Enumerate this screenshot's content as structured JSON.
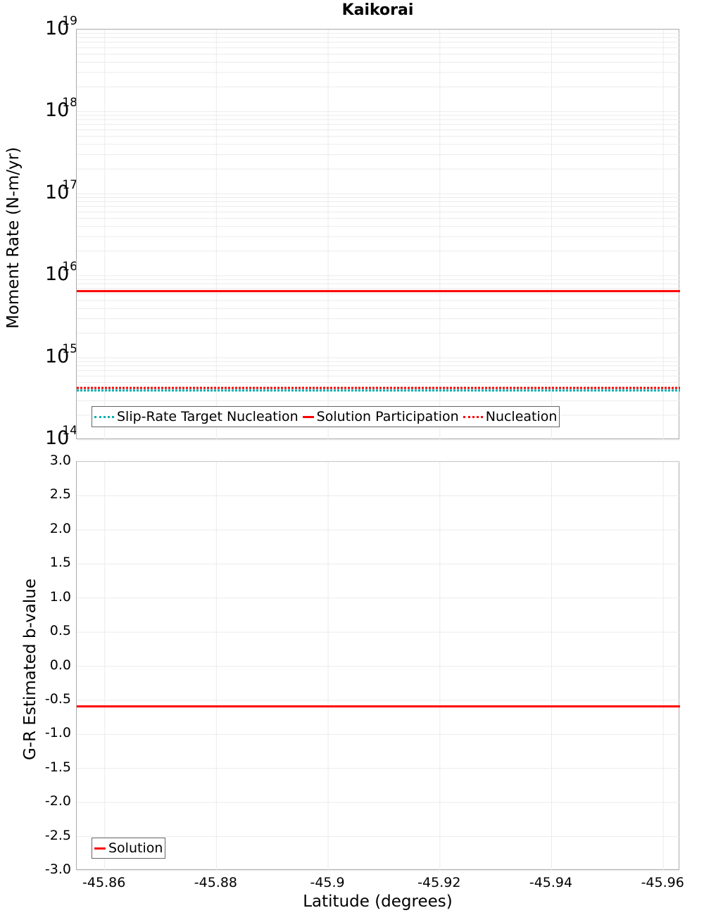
{
  "title": "Kaikorai",
  "top_plot": {
    "ylabel": "Moment Rate (N-m/yr)",
    "yticks": [
      {
        "base": "10",
        "exp": "19"
      },
      {
        "base": "10",
        "exp": "18"
      },
      {
        "base": "10",
        "exp": "17"
      },
      {
        "base": "10",
        "exp": "16"
      },
      {
        "base": "10",
        "exp": "15"
      },
      {
        "base": "10",
        "exp": "14"
      }
    ],
    "legend": [
      {
        "label": "Slip-Rate Target Nucleation",
        "color": "#00B0B0",
        "style": "dotted"
      },
      {
        "label": "Solution Participation",
        "color": "#FF0000",
        "style": "solid"
      },
      {
        "label": "Nucleation",
        "color": "#FF0000",
        "style": "dotted"
      }
    ]
  },
  "bottom_plot": {
    "ylabel": "G-R Estimated b-value",
    "yticks": [
      "3.0",
      "2.5",
      "2.0",
      "1.5",
      "1.0",
      "0.5",
      "0.0",
      "-0.5",
      "-1.0",
      "-1.5",
      "-2.0",
      "-2.5",
      "-3.0"
    ],
    "legend": [
      {
        "label": "Solution",
        "color": "#FF0000",
        "style": "solid"
      }
    ]
  },
  "xaxis": {
    "label": "Latitude (degrees)",
    "ticks": [
      "-45.86",
      "-45.88",
      "-45.9",
      "-45.92",
      "-45.94",
      "-45.96"
    ]
  },
  "chart_data": [
    {
      "type": "line",
      "title": "Kaikorai",
      "xlabel": "Latitude (degrees)",
      "ylabel": "Moment Rate (N-m/yr)",
      "yscale": "log",
      "ylim": [
        100000000000000.0,
        1e+19
      ],
      "xlim": [
        -45.855,
        -45.963
      ],
      "x_reversed": true,
      "grid": true,
      "legend_position": "lower-left",
      "x": [
        -45.855,
        -45.963
      ],
      "series": [
        {
          "name": "Slip-Rate Target Nucleation",
          "color": "#00B0B0",
          "style": "dotted",
          "values": [
            400000000000000.0,
            400000000000000.0
          ]
        },
        {
          "name": "Solution Participation",
          "color": "#FF0000",
          "style": "solid",
          "values": [
            6500000000000000.0,
            6500000000000000.0
          ]
        },
        {
          "name": "Nucleation",
          "color": "#FF0000",
          "style": "dotted",
          "values": [
            430000000000000.0,
            430000000000000.0
          ]
        }
      ]
    },
    {
      "type": "line",
      "xlabel": "Latitude (degrees)",
      "ylabel": "G-R Estimated b-value",
      "ylim": [
        -3.0,
        3.0
      ],
      "xlim": [
        -45.855,
        -45.963
      ],
      "x_reversed": true,
      "grid": true,
      "legend_position": "lower-left",
      "x": [
        -45.855,
        -45.963
      ],
      "series": [
        {
          "name": "Solution",
          "color": "#FF0000",
          "style": "solid",
          "values": [
            -0.59,
            -0.59
          ]
        }
      ]
    }
  ]
}
